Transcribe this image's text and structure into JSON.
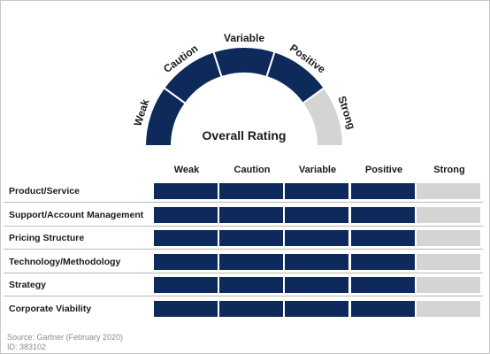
{
  "chart_data": [
    {
      "type": "gauge",
      "title": "Overall Rating",
      "segments": [
        "Weak",
        "Caution",
        "Variable",
        "Positive",
        "Strong"
      ],
      "value": "Positive",
      "filled_segments": 4
    },
    {
      "type": "table",
      "columns": [
        "Weak",
        "Caution",
        "Variable",
        "Positive",
        "Strong"
      ],
      "rows": [
        {
          "label": "Product/Service",
          "rating": "Positive",
          "filled": 4
        },
        {
          "label": "Support/Account Management",
          "rating": "Positive",
          "filled": 4
        },
        {
          "label": "Pricing Structure",
          "rating": "Positive",
          "filled": 4
        },
        {
          "label": "Technology/Methodology",
          "rating": "Positive",
          "filled": 4
        },
        {
          "label": "Strategy",
          "rating": "Positive",
          "filled": 4
        },
        {
          "label": "Corporate Viability",
          "rating": "Positive",
          "filled": 4
        }
      ]
    }
  ],
  "colors": {
    "filled": "#0e2a5a",
    "empty": "#d4d4d4"
  },
  "source": {
    "line1": "Source: Gartner (February 2020)",
    "line2": "ID: 383102"
  }
}
